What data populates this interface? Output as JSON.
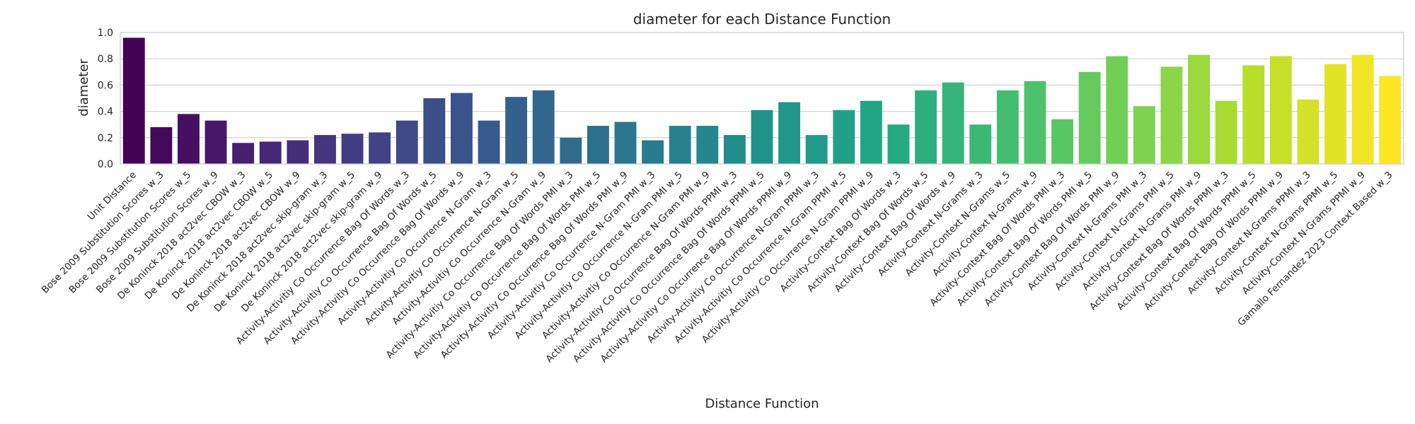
{
  "chart_data": {
    "type": "bar",
    "title": "diameter for each Distance Function",
    "xlabel": "Distance Function",
    "ylabel": "diameter",
    "ylim": [
      0,
      1.0
    ],
    "yticks": [
      "0.0",
      "0.2",
      "0.4",
      "0.6",
      "0.8",
      "1.0"
    ],
    "grid": "horizontal",
    "palette": "viridis",
    "categories": [
      "Unit Distance",
      "Bose 2009 Substitution Scores w_3",
      "Bose 2009 Substitution Scores w_5",
      "Bose 2009 Substitution Scores w_9",
      "De Koninck 2018 act2vec CBOW w_3",
      "De Koninck 2018 act2vec CBOW w_5",
      "De Koninck 2018 act2vec CBOW w_9",
      "De Koninck 2018 act2vec skip-gram w_3",
      "De Koninck 2018 act2vec skip-gram w_5",
      "De Koninck 2018 act2vec skip-gram w_9",
      "Activity-Activitiy Co Occurrence Bag Of Words w_3",
      "Activity-Activitiy Co Occurrence Bag Of Words w_5",
      "Activity-Activitiy Co Occurrence Bag Of Words w_9",
      "Activity-Activitiy Co Occurrence N-Gram w_3",
      "Activity-Activitiy Co Occurrence N-Gram w_5",
      "Activity-Activitiy Co Occurrence N-Gram w_9",
      "Activity-Activitiy Co Occurrence Bag Of Words PMI w_3",
      "Activity-Activitiy Co Occurrence Bag Of Words PMI w_5",
      "Activity-Activitiy Co Occurrence Bag Of Words PMI w_9",
      "Activity-Activitiy Co Occurrence N-Gram PMI w_3",
      "Activity-Activitiy Co Occurrence N-Gram PMI w_5",
      "Activity-Activitiy Co Occurrence N-Gram PMI w_9",
      "Activity-Activitiy Co Occurrence Bag Of Words PPMI w_3",
      "Activity-Activitiy Co Occurrence Bag Of Words PPMI w_5",
      "Activity-Activitiy Co Occurrence Bag Of Words PPMI w_9",
      "Activity-Activitiy Co Occurrence N-Gram PPMI w_3",
      "Activity-Activitiy Co Occurrence N-Gram PPMI w_5",
      "Activity-Activitiy Co Occurrence N-Gram PPMI w_9",
      "Activity-Context Bag Of Words w_3",
      "Activity-Context Bag Of Words w_5",
      "Activity-Context Bag Of Words w_9",
      "Activity-Context N-Grams w_3",
      "Activity-Context N-Grams w_5",
      "Activity-Context N-Grams w_9",
      "Activity-Context Bag Of Words PMI w_3",
      "Activity-Context Bag Of Words PMI w_5",
      "Activity-Context Bag Of Words PMI w_9",
      "Activity-Context N-Grams PMI w_3",
      "Activity-Context N-Grams PMI w_5",
      "Activity-Context N-Grams PMI w_9",
      "Activity-Context Bag Of Words PPMI w_3",
      "Activity-Context Bag Of Words PPMI w_5",
      "Activity-Context Bag Of Words PPMI w_9",
      "Activity-Context N-Grams PPMI w_3",
      "Activity-Context N-Grams PPMI w_5",
      "Activity-Context N-Grams PPMI w_9",
      "Gamallo Fernandez 2023 Context Based w_3"
    ],
    "values": [
      0.96,
      0.28,
      0.38,
      0.33,
      0.16,
      0.17,
      0.18,
      0.22,
      0.23,
      0.24,
      0.33,
      0.5,
      0.54,
      0.33,
      0.51,
      0.56,
      0.2,
      0.29,
      0.32,
      0.18,
      0.29,
      0.29,
      0.22,
      0.41,
      0.47,
      0.22,
      0.41,
      0.48,
      0.3,
      0.56,
      0.62,
      0.3,
      0.56,
      0.63,
      0.34,
      0.7,
      0.82,
      0.44,
      0.74,
      0.83,
      0.48,
      0.75,
      0.82,
      0.49,
      0.76,
      0.83,
      0.67
    ],
    "colors": {
      "grid": "#cccccc",
      "text": "#262626",
      "background": "#ffffff"
    }
  }
}
